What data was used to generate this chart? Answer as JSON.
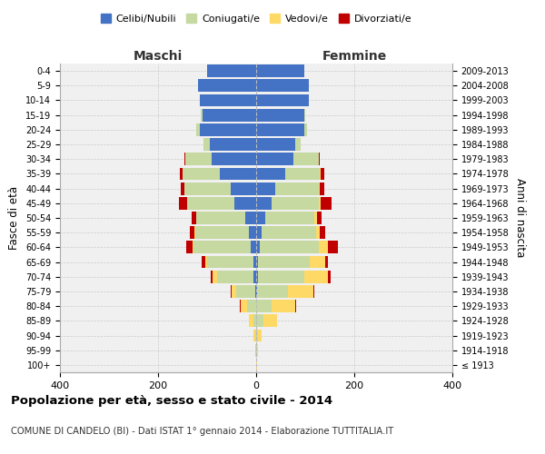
{
  "age_groups": [
    "100+",
    "95-99",
    "90-94",
    "85-89",
    "80-84",
    "75-79",
    "70-74",
    "65-69",
    "60-64",
    "55-59",
    "50-54",
    "45-49",
    "40-44",
    "35-39",
    "30-34",
    "25-29",
    "20-24",
    "15-19",
    "10-14",
    "5-9",
    "0-4"
  ],
  "birth_years": [
    "≤ 1913",
    "1914-1918",
    "1919-1923",
    "1924-1928",
    "1929-1933",
    "1934-1938",
    "1939-1943",
    "1944-1948",
    "1949-1953",
    "1954-1958",
    "1959-1963",
    "1964-1968",
    "1969-1973",
    "1974-1978",
    "1979-1983",
    "1984-1988",
    "1989-1993",
    "1994-1998",
    "1999-2003",
    "2004-2008",
    "2009-2013"
  ],
  "maschi": {
    "celibi": [
      0,
      0,
      0,
      0,
      0,
      2,
      5,
      5,
      12,
      15,
      22,
      45,
      52,
      75,
      90,
      95,
      115,
      110,
      115,
      118,
      100
    ],
    "coniugati": [
      0,
      1,
      2,
      6,
      18,
      38,
      75,
      95,
      115,
      110,
      100,
      95,
      95,
      75,
      55,
      12,
      8,
      3,
      0,
      0,
      0
    ],
    "vedovi": [
      0,
      1,
      3,
      8,
      14,
      10,
      8,
      4,
      2,
      1,
      1,
      0,
      0,
      0,
      0,
      0,
      0,
      0,
      0,
      0,
      0
    ],
    "divorziati": [
      0,
      0,
      0,
      0,
      2,
      2,
      5,
      8,
      14,
      10,
      8,
      18,
      6,
      5,
      2,
      0,
      0,
      0,
      0,
      0,
      0
    ]
  },
  "femmine": {
    "nubili": [
      0,
      0,
      0,
      0,
      0,
      2,
      3,
      4,
      8,
      12,
      18,
      32,
      38,
      60,
      75,
      80,
      98,
      98,
      108,
      108,
      98
    ],
    "coniugate": [
      0,
      1,
      4,
      15,
      32,
      62,
      95,
      105,
      120,
      110,
      100,
      95,
      90,
      70,
      52,
      10,
      6,
      2,
      0,
      0,
      0
    ],
    "vedove": [
      1,
      2,
      8,
      28,
      48,
      52,
      48,
      32,
      18,
      8,
      6,
      4,
      2,
      1,
      0,
      0,
      0,
      0,
      0,
      0,
      0
    ],
    "divorziate": [
      0,
      0,
      0,
      0,
      2,
      2,
      5,
      5,
      20,
      10,
      10,
      22,
      8,
      8,
      3,
      0,
      0,
      0,
      0,
      0,
      0
    ]
  },
  "colors": {
    "celibi": "#4472C4",
    "coniugati": "#c5d9a0",
    "vedovi": "#FFD966",
    "divorziati": "#C00000"
  },
  "title": "Popolazione per età, sesso e stato civile - 2014",
  "subtitle": "COMUNE DI CANDELO (BI) - Dati ISTAT 1° gennaio 2014 - Elaborazione TUTTITALIA.IT",
  "ylabel": "Fasce di età",
  "ylabel_right": "Anni di nascita",
  "xlabel_left": "Maschi",
  "xlabel_right": "Femmine",
  "xlim": 400,
  "bg_color": "#f0f0f0",
  "plot_bg": "#ffffff",
  "legend_labels": [
    "Celibi/Nubili",
    "Coniugati/e",
    "Vedovi/e",
    "Divorziati/e"
  ]
}
